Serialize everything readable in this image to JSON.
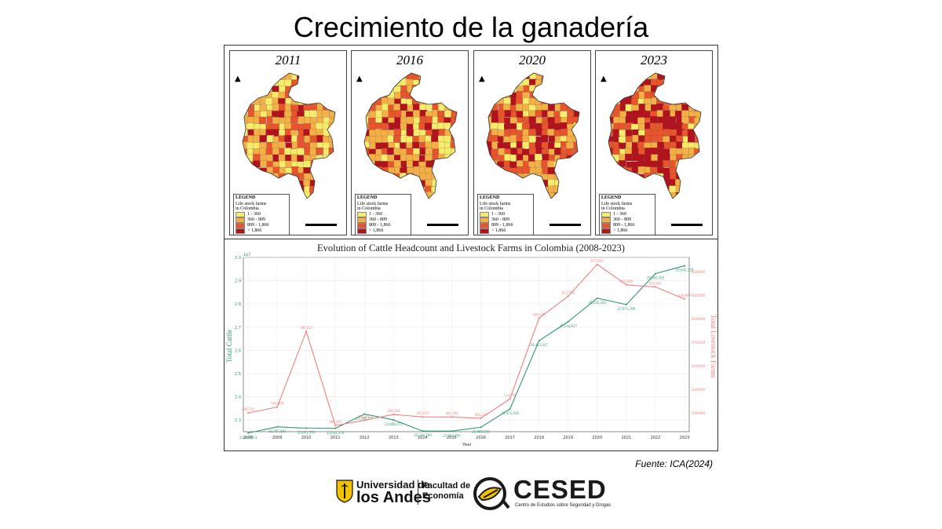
{
  "slide": {
    "title": "Crecimiento de la ganadería",
    "source": "Fuente: ICA(2024)"
  },
  "maps": {
    "panels": [
      {
        "year": "2011"
      },
      {
        "year": "2016"
      },
      {
        "year": "2020"
      },
      {
        "year": "2023"
      }
    ],
    "legend": {
      "title": "LEGEND",
      "subtitle_line1": "Life stock farms",
      "subtitle_line2": "in Colombia",
      "classes": [
        {
          "label": "1 - 360",
          "color": "#f7ec6a"
        },
        {
          "label": "360 - 809",
          "color": "#f5b045"
        },
        {
          "label": "809 - 1,866",
          "color": "#e8552a"
        },
        {
          "label": "> 1,866",
          "color": "#b3121c"
        }
      ]
    },
    "north_symbol": "▲"
  },
  "chart_data": {
    "type": "line",
    "title": "Evolution of Cattle Headcount and Livestock Farms in Colombia (2008-2023)",
    "xlabel": "Year",
    "ylabel": "Total Cattle",
    "y2label": "Total Livestock Farms",
    "categories": [
      "2008",
      "2009",
      "2010",
      "2011",
      "2012",
      "2013",
      "2014",
      "2015",
      "2016",
      "2017",
      "2018",
      "2019",
      "2020",
      "2021",
      "2022",
      "2023"
    ],
    "series": [
      {
        "name": "Total Cattle",
        "axis": "left",
        "color": "#2e9a6e",
        "values": [
          22440613,
          22707384,
          22651993,
          22642378,
          23258297,
          23008271,
          22526780,
          22522783,
          22689919,
          23475928,
          26413227,
          27234027,
          28245262,
          27973390,
          29302392,
          29642539
        ],
        "labels": [
          "22,440,613",
          "22,707,384",
          "22,651,993",
          "22,642,378",
          "23,258,297",
          "23,008,271",
          "22,526,780",
          "22,522,783",
          "22,689,919",
          "23,475,928",
          "26,413,227",
          "27,234,027",
          "28,245,262",
          "27,973,390",
          "29,302,392",
          "29,642,539"
        ]
      },
      {
        "name": "Total Livestock Farms",
        "axis": "right",
        "color": "#f08080",
        "values": [
          499792,
          506090,
          586523,
          486515,
          492037,
          498284,
          495652,
          495596,
          494237,
          514796,
          600578,
          623794,
          657663,
          635898,
          633641,
          620807
        ],
        "labels": [
          "499,792",
          "506,090",
          "586,523",
          "486,515",
          "492,037",
          "498,284",
          "495,652",
          "495,596",
          "494,237",
          "514,796",
          "600,578",
          "623,794",
          "657,663",
          "635,898",
          "633,641",
          "620,807"
        ]
      }
    ],
    "y_multiplier_label": "1e7",
    "ylim": [
      2.25,
      3.0
    ],
    "yticks": [
      "2.3",
      "2.4",
      "2.5",
      "2.6",
      "2.7",
      "2.8",
      "2.9",
      "3.0"
    ],
    "y2lim": [
      480000,
      665000
    ],
    "y2ticks": [
      "500000",
      "525000",
      "550000",
      "575000",
      "600000",
      "625000",
      "650000"
    ],
    "grid": true
  },
  "logos": {
    "uandes_line1": "Universidad de",
    "uandes_line2": "los Andes",
    "facultad_line1": "Facultad de",
    "facultad_line2": "Economía",
    "cesed_name": "CESED",
    "cesed_sub": "Centro de Estudios sobre Seguridad y Drogas",
    "brand_yellow": "#f2c300"
  }
}
